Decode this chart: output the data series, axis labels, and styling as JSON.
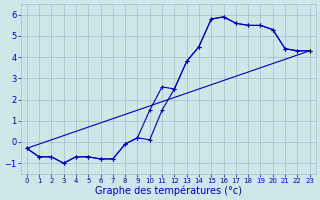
{
  "xlabel": "Graphe des températures (°c)",
  "bg_color": "#cce8e8",
  "grid_color": "#aabbcc",
  "line_color": "#0000bb",
  "xlim": [
    -0.5,
    23.5
  ],
  "ylim": [
    -1.5,
    6.5
  ],
  "yticks": [
    -1,
    0,
    1,
    2,
    3,
    4,
    5,
    6
  ],
  "xticks": [
    0,
    1,
    2,
    3,
    4,
    5,
    6,
    7,
    8,
    9,
    10,
    11,
    12,
    13,
    14,
    15,
    16,
    17,
    18,
    19,
    20,
    21,
    22,
    23
  ],
  "series1_x": [
    0,
    1,
    2,
    3,
    4,
    5,
    6,
    7,
    8,
    9,
    10,
    11,
    12,
    13,
    14,
    15,
    16,
    17,
    18,
    19,
    20,
    21,
    22,
    23
  ],
  "series1_y": [
    -0.3,
    -0.7,
    -0.7,
    -1.0,
    -0.7,
    -0.7,
    -0.8,
    -0.8,
    -0.1,
    0.2,
    1.5,
    2.6,
    2.5,
    3.8,
    4.5,
    5.8,
    5.9,
    5.6,
    5.5,
    5.5,
    5.3,
    4.4,
    4.3,
    4.3
  ],
  "series2_x": [
    0,
    1,
    2,
    3,
    4,
    5,
    6,
    7,
    8,
    9,
    10,
    11,
    12,
    13,
    14,
    15,
    16,
    17,
    18,
    19,
    20,
    21,
    22,
    23
  ],
  "series2_y": [
    -0.3,
    -0.7,
    -0.7,
    -1.0,
    -0.7,
    -0.7,
    -0.8,
    -0.8,
    -0.1,
    0.2,
    0.1,
    1.5,
    2.5,
    3.8,
    4.5,
    5.8,
    5.9,
    5.6,
    5.5,
    5.5,
    5.3,
    4.4,
    4.3,
    4.3
  ],
  "series3_x": [
    0,
    23
  ],
  "series3_y": [
    -0.3,
    4.3
  ],
  "xlabel_fontsize": 7,
  "tick_fontsize_x": 5,
  "tick_fontsize_y": 6
}
